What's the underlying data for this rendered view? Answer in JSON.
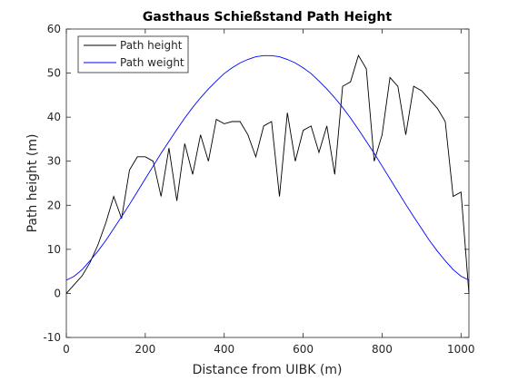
{
  "chart_data": {
    "type": "line",
    "title": "Gasthaus Schießstand Path Height",
    "xlabel": "Distance from UIBK (m)",
    "ylabel": "Path height (m)",
    "x": [
      0,
      20,
      40,
      60,
      80,
      100,
      120,
      140,
      160,
      180,
      200,
      220,
      240,
      260,
      280,
      300,
      320,
      340,
      360,
      380,
      400,
      420,
      440,
      460,
      480,
      500,
      520,
      540,
      560,
      580,
      600,
      620,
      640,
      660,
      680,
      700,
      720,
      740,
      760,
      780,
      800,
      820,
      840,
      860,
      880,
      900,
      920,
      940,
      960,
      980,
      1000,
      1020
    ],
    "series": [
      {
        "name": "Path height",
        "color": "#000000",
        "values": [
          0,
          2,
          4,
          7,
          11,
          16,
          22,
          17,
          28,
          31,
          31,
          30,
          22,
          33,
          21,
          34,
          27,
          36,
          30,
          39.5,
          38.5,
          39,
          39,
          36,
          31,
          38,
          39,
          22,
          41,
          30,
          37,
          38,
          32,
          38,
          27,
          47,
          48,
          54,
          51,
          30,
          36,
          49,
          47,
          36,
          47,
          46,
          44,
          42,
          39,
          22,
          23,
          0
        ]
      },
      {
        "name": "Path weight",
        "color": "#0000ff",
        "values": [
          3,
          3.9,
          5.4,
          7.4,
          9.6,
          12,
          14.7,
          17.4,
          20.2,
          23.1,
          26,
          28.9,
          31.8,
          34.5,
          37.2,
          39.8,
          42.2,
          44.4,
          46.4,
          48.2,
          49.9,
          51.2,
          52.3,
          53.1,
          53.7,
          53.96,
          53.96,
          53.7,
          53.1,
          52.3,
          51.2,
          49.9,
          48.2,
          46.4,
          44.4,
          42.2,
          39.8,
          37.2,
          34.5,
          31.8,
          28.9,
          26,
          23.1,
          20.2,
          17.4,
          14.7,
          12,
          9.6,
          7.4,
          5.4,
          3.9,
          3
        ]
      }
    ],
    "xlim": [
      0,
      1020
    ],
    "ylim": [
      -10,
      60
    ],
    "xticks": [
      0,
      200,
      400,
      600,
      800,
      1000
    ],
    "yticks": [
      -10,
      0,
      10,
      20,
      30,
      40,
      50,
      60
    ],
    "legend": "upper left"
  }
}
